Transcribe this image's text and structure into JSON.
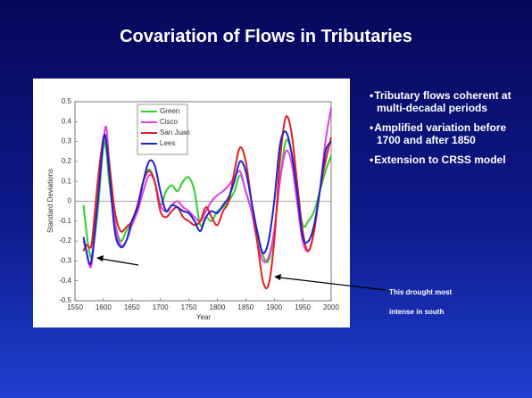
{
  "title": "Covariation of Flows in Tributaries",
  "bullets": [
    "Tributary flows coherent at multi-decadal periods",
    "Amplified variation before 1700 and after 1850",
    "Extension to CRSS model"
  ],
  "annotation": "This drought most intense in south",
  "chart_data": {
    "type": "line",
    "xlabel": "Year",
    "ylabel": "Standard Deviations",
    "x": [
      1565,
      1570,
      1575,
      1580,
      1590,
      1600,
      1605,
      1610,
      1620,
      1630,
      1640,
      1650,
      1660,
      1670,
      1680,
      1690,
      1700,
      1710,
      1720,
      1730,
      1740,
      1750,
      1760,
      1770,
      1780,
      1790,
      1800,
      1810,
      1820,
      1830,
      1840,
      1850,
      1860,
      1870,
      1880,
      1890,
      1900,
      1910,
      1920,
      1930,
      1940,
      1950,
      1960,
      1970,
      1980,
      1990,
      2000
    ],
    "series": [
      {
        "name": "Green",
        "color": "#33cc33",
        "values": [
          -0.02,
          -0.15,
          -0.25,
          -0.27,
          -0.05,
          0.28,
          0.25,
          0.1,
          -0.1,
          -0.2,
          -0.15,
          -0.1,
          -0.02,
          0.1,
          0.16,
          0.1,
          -0.02,
          0.05,
          0.08,
          0.05,
          0.1,
          0.12,
          0.05,
          -0.12,
          -0.08,
          -0.1,
          -0.05,
          -0.03,
          0.0,
          0.05,
          0.13,
          0.05,
          -0.05,
          -0.15,
          -0.27,
          -0.3,
          -0.15,
          0.1,
          0.3,
          0.25,
          0.05,
          -0.12,
          -0.1,
          -0.05,
          0.05,
          0.15,
          0.23
        ]
      },
      {
        "name": "Cisco",
        "color": "#e040e0",
        "values": [
          -0.2,
          -0.25,
          -0.32,
          -0.3,
          0.0,
          0.3,
          0.37,
          0.2,
          -0.1,
          -0.22,
          -0.2,
          -0.12,
          -0.05,
          0.05,
          0.13,
          0.1,
          -0.02,
          -0.05,
          -0.02,
          0.0,
          -0.03,
          -0.05,
          -0.08,
          -0.1,
          -0.05,
          0.0,
          0.03,
          0.05,
          0.08,
          0.12,
          0.15,
          0.05,
          -0.05,
          -0.2,
          -0.3,
          -0.28,
          -0.15,
          0.1,
          0.25,
          0.2,
          0.0,
          -0.2,
          -0.25,
          -0.15,
          0.05,
          0.3,
          0.47
        ]
      },
      {
        "name": "San Juan",
        "color": "#dd2222",
        "values": [
          -0.25,
          -0.22,
          -0.23,
          -0.2,
          0.1,
          0.32,
          0.3,
          0.2,
          -0.05,
          -0.15,
          -0.13,
          -0.1,
          -0.02,
          0.1,
          0.15,
          0.1,
          -0.05,
          -0.08,
          -0.05,
          -0.03,
          -0.08,
          -0.1,
          -0.12,
          -0.1,
          -0.03,
          -0.08,
          -0.12,
          -0.05,
          0.0,
          0.15,
          0.27,
          0.2,
          0.0,
          -0.2,
          -0.4,
          -0.42,
          -0.2,
          0.2,
          0.42,
          0.35,
          0.1,
          -0.15,
          -0.25,
          -0.15,
          0.05,
          0.2,
          0.32
        ]
      },
      {
        "name": "Lees",
        "color": "#2222cc",
        "values": [
          -0.18,
          -0.25,
          -0.31,
          -0.28,
          0.0,
          0.31,
          0.3,
          0.15,
          -0.15,
          -0.23,
          -0.2,
          -0.1,
          -0.03,
          0.1,
          0.2,
          0.18,
          0.05,
          -0.05,
          -0.02,
          -0.03,
          -0.05,
          -0.06,
          -0.1,
          -0.15,
          -0.08,
          -0.05,
          -0.06,
          -0.02,
          0.02,
          0.1,
          0.2,
          0.15,
          0.0,
          -0.15,
          -0.26,
          -0.2,
          0.0,
          0.28,
          0.35,
          0.25,
          0.05,
          -0.18,
          -0.2,
          -0.12,
          0.05,
          0.25,
          0.3
        ]
      }
    ],
    "xlim": [
      1550,
      2000
    ],
    "xticks": [
      1550,
      1600,
      1650,
      1700,
      1750,
      1800,
      1850,
      1900,
      1950,
      2000
    ],
    "ylim": [
      -0.5,
      0.5
    ],
    "yticks": [
      -0.5,
      -0.4,
      -0.3,
      -0.2,
      -0.1,
      0,
      0.1,
      0.2,
      0.3,
      0.4,
      0.5
    ],
    "legend": "upper left"
  }
}
